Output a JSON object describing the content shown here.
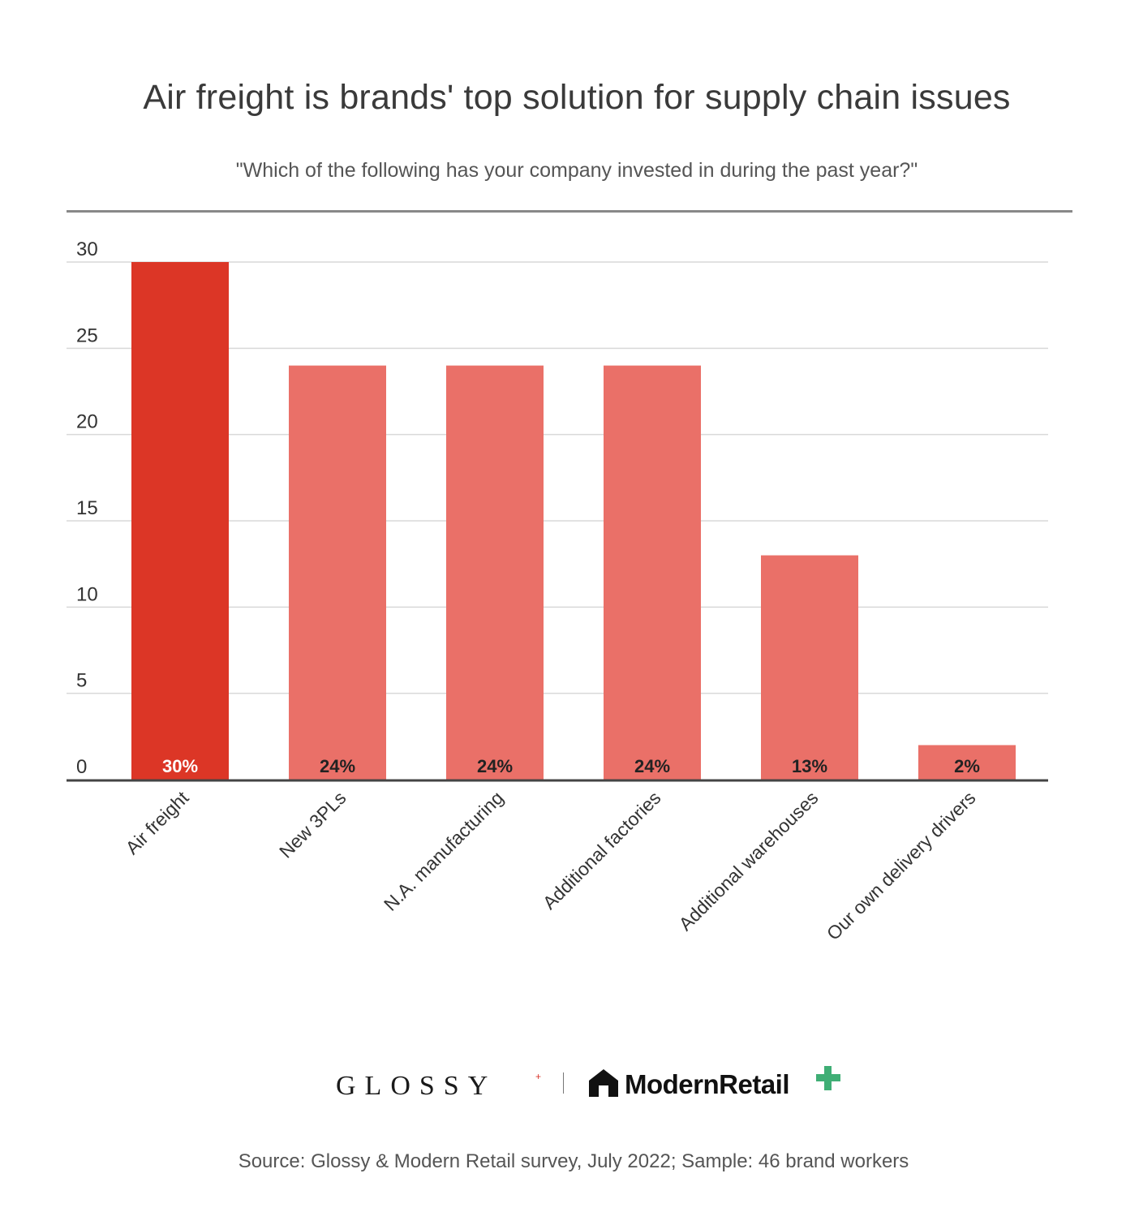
{
  "title": "Air freight is brands' top solution for supply chain issues",
  "subtitle": "\"Which of the following has your company invested in during the past year?\"",
  "colors": {
    "highlight": "#dc3626",
    "bar": "#ea7068",
    "grid": "#d9d9d9",
    "axis": "#444444"
  },
  "chart_data": {
    "type": "bar",
    "title": "Air freight is brands' top solution for supply chain issues",
    "subtitle": "\"Which of the following has your company invested in during the past year?\"",
    "categories": [
      "Air freight",
      "New 3PLs",
      "N.A. manufacturing",
      "Additional factories",
      "Additional warehouses",
      "Our own delivery drivers"
    ],
    "values": [
      30,
      24,
      24,
      24,
      13,
      2
    ],
    "data_labels": [
      "30%",
      "24%",
      "24%",
      "24%",
      "13%",
      "2%"
    ],
    "highlighted_category": "Air freight",
    "yticks": [
      0,
      5,
      10,
      15,
      20,
      25,
      30
    ],
    "ylim": [
      0,
      30
    ],
    "grid": true,
    "legend": "none"
  },
  "footer": {
    "glossy_logo": "GLOSSY",
    "glossy_plus": "+",
    "modern_retail_logo": "ModernRetail",
    "source": "Source: Glossy & Modern Retail survey, July 2022; Sample: 46 brand workers"
  }
}
